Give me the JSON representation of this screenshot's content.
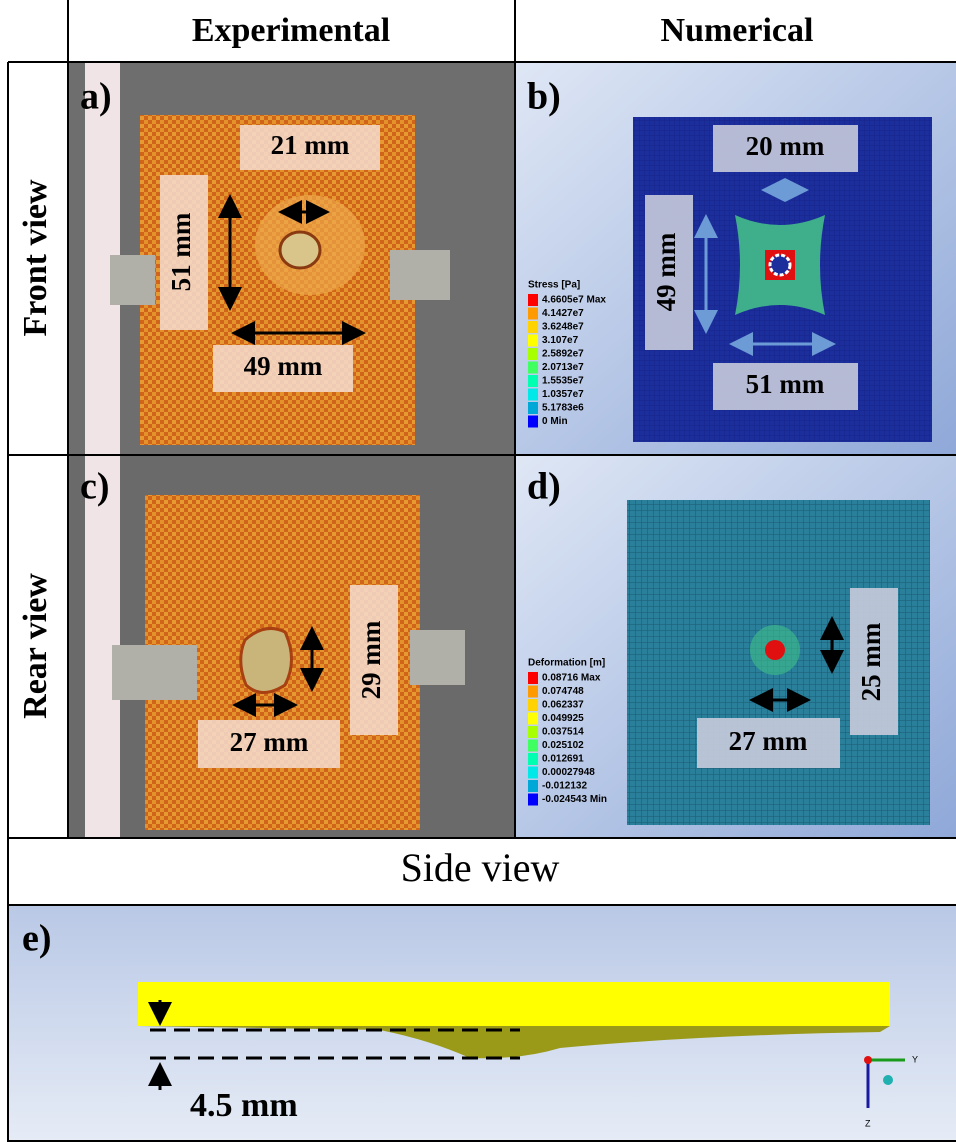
{
  "headers": {
    "experimental": "Experimental",
    "numerical": "Numerical",
    "front": "Front view",
    "rear": "Rear view",
    "side": "Side view"
  },
  "panels": {
    "a": {
      "label": "a)",
      "dims": [
        "21 mm",
        "51 mm",
        "49 mm"
      ]
    },
    "b": {
      "label": "b)",
      "dims": [
        "20 mm",
        "49 mm",
        "51 mm"
      ],
      "legend": {
        "title": "Stress [Pa]",
        "entries": [
          "4.6605e7 Max",
          "4.1427e7",
          "3.6248e7",
          "3.107e7",
          "2.5892e7",
          "2.0713e7",
          "1.5535e7",
          "1.0357e7",
          "5.1783e6",
          "0 Min"
        ]
      }
    },
    "c": {
      "label": "c)",
      "dims": [
        "29 mm",
        "27 mm"
      ]
    },
    "d": {
      "label": "d)",
      "dims": [
        "25 mm",
        "27 mm"
      ],
      "legend": {
        "title": "Deformation [m]",
        "entries": [
          "0.08716 Max",
          "0.074748",
          "0.062337",
          "0.049925",
          "0.037514",
          "0.025102",
          "0.012691",
          "0.00027948",
          "-0.012132",
          "-0.024543 Min"
        ]
      }
    },
    "e": {
      "label": "e)",
      "dims": [
        "4.5 mm"
      ],
      "axes": [
        "Y",
        "Z"
      ]
    }
  }
}
